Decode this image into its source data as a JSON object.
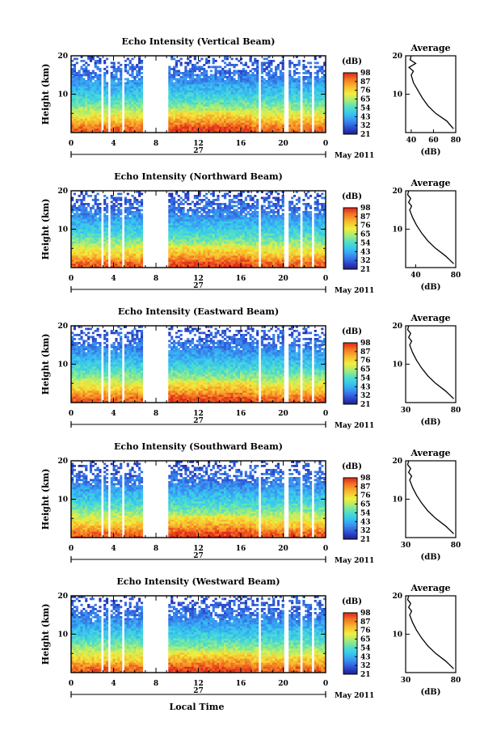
{
  "colors": {
    "colorbar": [
      "#1c1a8c",
      "#2d4fd3",
      "#3a8ef0",
      "#35c4f2",
      "#52e0c6",
      "#a8ec74",
      "#f2ee3c",
      "#f8ba2e",
      "#f47a22",
      "#e0291c"
    ],
    "gap": "#ffffff",
    "line": "#000000"
  },
  "shared": {
    "y_axis_label": "Height (km)",
    "height_ticks": [
      "20",
      "10"
    ],
    "time_ticks": [
      "0",
      "4",
      "8",
      "12",
      "16",
      "20",
      "0"
    ],
    "date_day": "27",
    "date_month": "May 2011",
    "colorbar_unit": "(dB)",
    "average_title": "Average",
    "average_xunit": "(dB)",
    "x_axis_title": "Local Time"
  },
  "panels": [
    {
      "title": "Echo Intensity (Vertical Beam)",
      "colorbar_ticks": [
        "98",
        "87",
        "76",
        "65",
        "54",
        "43",
        "32",
        "21"
      ],
      "avg_ticks": [
        "40",
        "60",
        "80"
      ]
    },
    {
      "title": "Echo Intensity (Northward Beam)",
      "colorbar_ticks": [
        "98",
        "87",
        "76",
        "65",
        "54",
        "43",
        "32",
        "21"
      ],
      "avg_ticks": [
        "40",
        "80"
      ]
    },
    {
      "title": "Echo Intensity (Eastward Beam)",
      "colorbar_ticks": [
        "98",
        "87",
        "76",
        "65",
        "54",
        "43",
        "32",
        "21"
      ],
      "avg_ticks": [
        "30",
        "80"
      ]
    },
    {
      "title": "Echo Intensity (Southward Beam)",
      "colorbar_ticks": [
        "98",
        "87",
        "76",
        "65",
        "54",
        "43",
        "32",
        "21"
      ],
      "avg_ticks": [
        "30",
        "80"
      ]
    },
    {
      "title": "Echo Intensity (Westward Beam)",
      "colorbar_ticks": [
        "98",
        "87",
        "76",
        "65",
        "54",
        "43",
        "32",
        "21"
      ],
      "avg_ticks": [
        "30",
        "80"
      ]
    }
  ],
  "chart_data": {
    "type": "heatmap",
    "description_units": {
      "x": "Local Time (h)",
      "y": "Height (km)",
      "color": "Echo intensity (dB)"
    },
    "x_range": [
      0,
      24
    ],
    "y_range": [
      0,
      20
    ],
    "color_range": [
      21,
      98
    ],
    "data_gaps_hours": [
      [
        2.3,
        2.5
      ],
      [
        2.9,
        3.1
      ],
      [
        3.5,
        3.7
      ],
      [
        4.9,
        5.1
      ],
      [
        6.3,
        6.4
      ],
      [
        6.7,
        9.2
      ],
      [
        17.6,
        17.9
      ],
      [
        20.1,
        20.4
      ],
      [
        21.6,
        21.8
      ],
      [
        22.6,
        22.9
      ]
    ],
    "intensity_profile_by_height": [
      {
        "height_km": 1,
        "db": 92
      },
      {
        "height_km": 3,
        "db": 80
      },
      {
        "height_km": 5,
        "db": 70
      },
      {
        "height_km": 7,
        "db": 60
      },
      {
        "height_km": 9,
        "db": 52
      },
      {
        "height_km": 11,
        "db": 46
      },
      {
        "height_km": 13,
        "db": 40
      },
      {
        "height_km": 15,
        "db": 35
      },
      {
        "height_km": 17,
        "db": 32
      },
      {
        "height_km": 19,
        "db": 30
      }
    ],
    "average_profiles": [
      {
        "beam": "Vertical",
        "xlim": [
          35,
          80
        ],
        "points": [
          [
            78,
            1
          ],
          [
            72,
            3
          ],
          [
            62,
            5
          ],
          [
            55,
            7
          ],
          [
            50,
            9
          ],
          [
            46,
            11
          ],
          [
            42,
            13
          ],
          [
            40,
            15
          ],
          [
            42,
            16
          ],
          [
            38,
            17
          ],
          [
            44,
            18
          ],
          [
            39,
            19
          ],
          [
            40,
            20
          ]
        ]
      },
      {
        "beam": "Northward",
        "xlim": [
          30,
          80
        ],
        "points": [
          [
            78,
            1
          ],
          [
            70,
            3
          ],
          [
            60,
            5
          ],
          [
            52,
            7
          ],
          [
            46,
            9
          ],
          [
            41,
            11
          ],
          [
            37,
            13
          ],
          [
            34,
            15
          ],
          [
            36,
            16
          ],
          [
            33,
            17
          ],
          [
            35,
            18
          ],
          [
            32,
            19
          ],
          [
            33,
            20
          ]
        ]
      },
      {
        "beam": "Eastward",
        "xlim": [
          30,
          80
        ],
        "points": [
          [
            78,
            1
          ],
          [
            70,
            3
          ],
          [
            60,
            5
          ],
          [
            52,
            7
          ],
          [
            46,
            9
          ],
          [
            41,
            11
          ],
          [
            37,
            13
          ],
          [
            34,
            15
          ],
          [
            36,
            16
          ],
          [
            33,
            17
          ],
          [
            35,
            18
          ],
          [
            32,
            19
          ],
          [
            33,
            20
          ]
        ]
      },
      {
        "beam": "Southward",
        "xlim": [
          30,
          80
        ],
        "points": [
          [
            78,
            1
          ],
          [
            70,
            3
          ],
          [
            60,
            5
          ],
          [
            52,
            7
          ],
          [
            46,
            9
          ],
          [
            41,
            11
          ],
          [
            37,
            13
          ],
          [
            34,
            15
          ],
          [
            36,
            16
          ],
          [
            33,
            17
          ],
          [
            35,
            18
          ],
          [
            32,
            19
          ],
          [
            33,
            20
          ]
        ]
      },
      {
        "beam": "Westward",
        "xlim": [
          30,
          80
        ],
        "points": [
          [
            78,
            1
          ],
          [
            70,
            3
          ],
          [
            60,
            5
          ],
          [
            52,
            7
          ],
          [
            46,
            9
          ],
          [
            41,
            11
          ],
          [
            37,
            13
          ],
          [
            34,
            15
          ],
          [
            36,
            16
          ],
          [
            33,
            17
          ],
          [
            35,
            18
          ],
          [
            32,
            19
          ],
          [
            33,
            20
          ]
        ]
      }
    ]
  }
}
